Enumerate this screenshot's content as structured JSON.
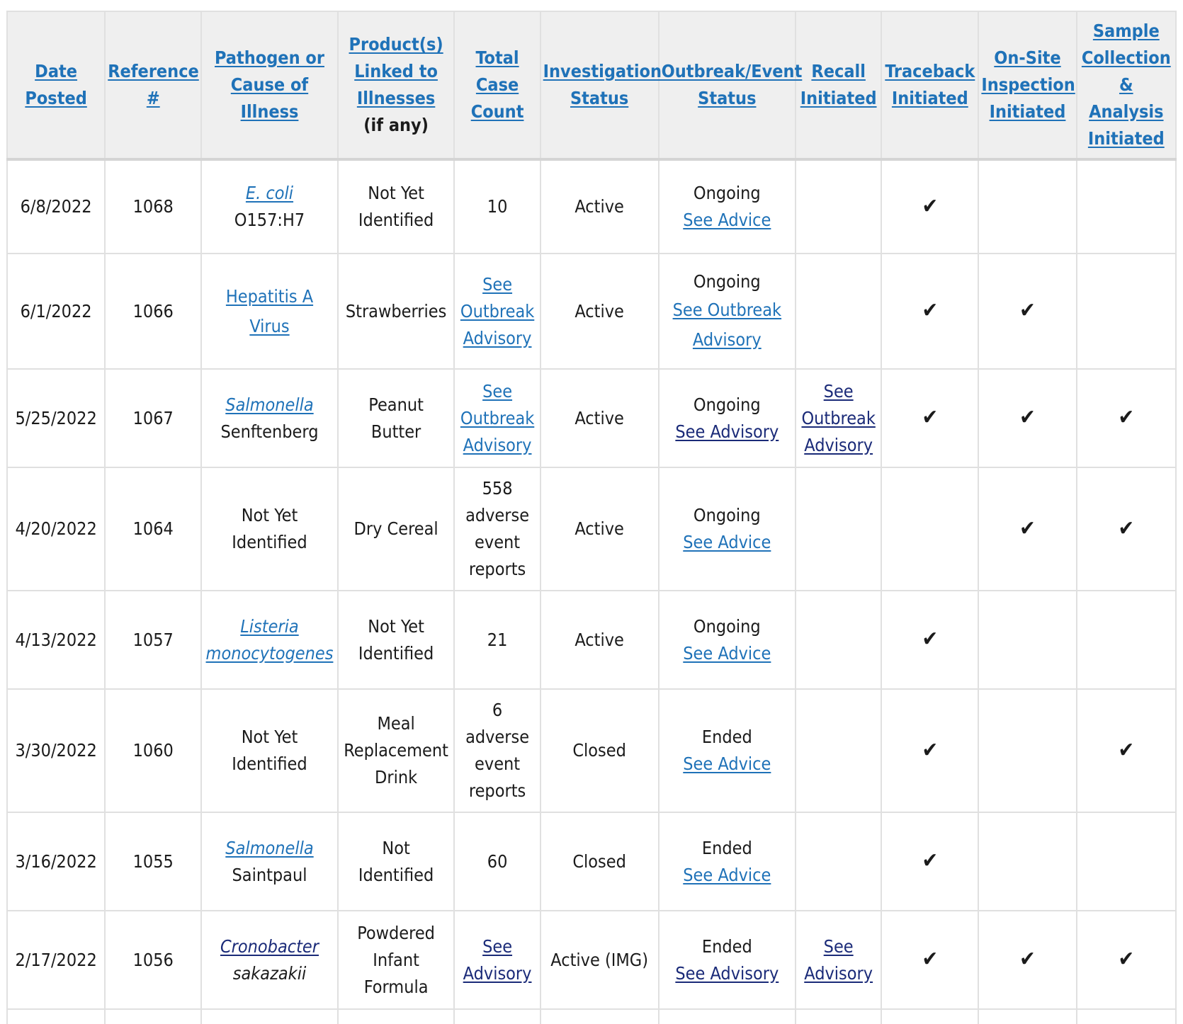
{
  "headers": {
    "date": "Date Posted",
    "reference": "Reference #",
    "pathogen": "Pathogen or Cause of Illness",
    "products": "Product(s) Linked to Illnesses",
    "products_note": "(if any)",
    "case_count": "Total Case Count",
    "investigation": "Investigation Status",
    "outbreak": "Outbreak/Event Status",
    "recall": "Recall Initiated",
    "traceback": "Traceback Initiated",
    "onsite": "On-Site Inspection Initiated",
    "sample": "Sample Collection & Analysis Initiated"
  },
  "check_mark": "✔",
  "rows": [
    {
      "date": "6/8/2022",
      "ref": "1068",
      "pathogen_link": "E. coli",
      "pathogen_text": "O157:H7",
      "product": "Not Yet Identified",
      "count": "10",
      "investigation": "Active",
      "outbreak_status": "Ongoing",
      "outbreak_link": "See Advice"
    },
    {
      "date": "6/1/2022",
      "ref": "1066",
      "pathogen_link": "Hepatitis A Virus",
      "product": "Strawberries",
      "count_link": "See Outbreak Advisory",
      "investigation": "Active",
      "outbreak_status": "Ongoing",
      "outbreak_link": "See Outbreak Advisory"
    },
    {
      "date": "5/25/2022",
      "ref": "1067",
      "pathogen_link": "Salmonella",
      "pathogen_text": "Senftenberg",
      "product": "Peanut Butter",
      "count_link": "See Outbreak Advisory",
      "investigation": "Active",
      "outbreak_status": "Ongoing",
      "outbreak_link": "See Advisory",
      "recall_link": "See Outbreak Advisory"
    },
    {
      "date": "4/20/2022",
      "ref": "1064",
      "pathogen_text": "Not Yet Identified",
      "product": "Dry Cereal",
      "count": "558 adverse event reports",
      "investigation": "Active",
      "outbreak_status": "Ongoing",
      "outbreak_link": "See Advice"
    },
    {
      "date": "4/13/2022",
      "ref": "1057",
      "pathogen_link": "Listeria monocytogenes",
      "product": "Not Yet Identified",
      "count": "21",
      "investigation": "Active",
      "outbreak_status": "Ongoing",
      "outbreak_link": "See Advice"
    },
    {
      "date": "3/30/2022",
      "ref": "1060",
      "pathogen_text": "Not Yet Identified",
      "product": "Meal Replacement Drink",
      "count": "6 adverse event reports",
      "investigation": "Closed",
      "outbreak_status": "Ended",
      "outbreak_link": "See Advice"
    },
    {
      "date": "3/16/2022",
      "ref": "1055",
      "pathogen_link": "Salmonella",
      "pathogen_text": "Saintpaul",
      "product": "Not Identified",
      "count": "60",
      "investigation": "Closed",
      "outbreak_status": "Ended",
      "outbreak_link": "See Advice"
    },
    {
      "date": "2/17/2022",
      "ref": "1056",
      "pathogen_link": "Cronobacter",
      "pathogen_text": "sakazakii",
      "product": "Powdered Infant Formula",
      "count_link": "See Advisory",
      "investigation": "Active (IMG)",
      "outbreak_status": "Ended",
      "outbreak_link": "See Advisory",
      "recall_link": "See Advisory"
    }
  ]
}
